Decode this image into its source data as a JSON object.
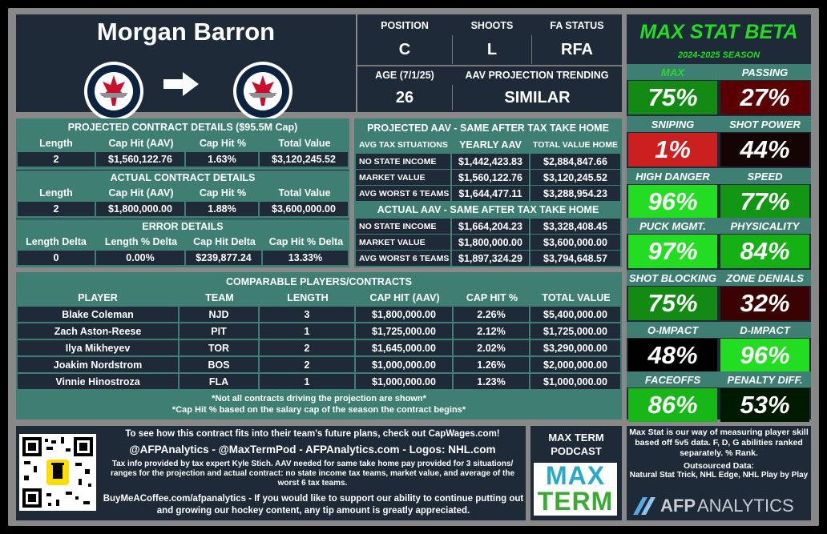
{
  "player": {
    "name": "Morgan Barron",
    "position_label": "POSITION",
    "position": "C",
    "shoots_label": "SHOOTS",
    "shoots": "L",
    "fa_label": "FA STATUS",
    "fa_status": "RFA",
    "age_label": "AGE (7/1/25)",
    "age": "26",
    "trend_label": "AAV PROJECTION TRENDING",
    "trend": "SIMILAR",
    "from_team_logo": "jets-logo-icon",
    "to_team_logo": "jets-logo-icon",
    "arrow": "arrow-right-icon"
  },
  "projected": {
    "title": "PROJECTED CONTRACT DETAILS ($95.5M Cap)",
    "headers": [
      "Length",
      "Cap Hit (AAV)",
      "Cap Hit %",
      "Total Value"
    ],
    "values": [
      "2",
      "$1,560,122.76",
      "1.63%",
      "$3,120,245.52"
    ]
  },
  "actual": {
    "title": "ACTUAL CONTRACT DETAILS",
    "headers": [
      "Length",
      "Cap Hit (AAV)",
      "Cap Hit %",
      "Total Value"
    ],
    "values": [
      "2",
      "$1,800,000.00",
      "1.88%",
      "$3,600,000.00"
    ]
  },
  "error": {
    "title": "ERROR DETAILS",
    "headers": [
      "Length Delta",
      "Length % Delta",
      "Cap Hit Delta",
      "Cap Hit % Delta"
    ],
    "values": [
      "0",
      "0.00%",
      "$239,877.24",
      "13.33%"
    ]
  },
  "tax_projected": {
    "title": "PROJECTED AAV - SAME AFTER TAX TAKE HOME",
    "headers": [
      "AVG TAX SITUATIONS",
      "YEARLY AAV",
      "TOTAL VALUE HOME"
    ],
    "rows": [
      [
        "NO STATE INCOME",
        "$1,442,423.83",
        "$2,884,847.66"
      ],
      [
        "MARKET VALUE",
        "$1,560,122.76",
        "$3,120,245.52"
      ],
      [
        "AVG WORST 6 TEAMS",
        "$1,644,477.11",
        "$3,288,954.23"
      ]
    ]
  },
  "tax_actual": {
    "title": "ACTUAL AAV - SAME AFTER TAX TAKE HOME",
    "rows": [
      [
        "NO STATE INCOME",
        "$1,664,204.23",
        "$3,328,408.45"
      ],
      [
        "MARKET VALUE",
        "$1,800,000.00",
        "$3,600,000.00"
      ],
      [
        "AVG WORST 6 TEAMS",
        "$1,897,324.29",
        "$3,794,648.57"
      ]
    ]
  },
  "comparables": {
    "title": "COMPARABLE PLAYERS/CONTRACTS",
    "headers": [
      "PLAYER",
      "TEAM",
      "LENGTH",
      "CAP HIT (AAV)",
      "CAP HIT %",
      "TOTAL VALUE"
    ],
    "rows": [
      [
        "Blake Coleman",
        "NJD",
        "3",
        "$1,800,000.00",
        "2.26%",
        "$5,400,000.00"
      ],
      [
        "Zach Aston-Reese",
        "PIT",
        "1",
        "$1,725,000.00",
        "2.12%",
        "$1,725,000.00"
      ],
      [
        "Ilya Mikheyev",
        "TOR",
        "2",
        "$1,645,000.00",
        "2.02%",
        "$3,290,000.00"
      ],
      [
        "Joakim Nordstrom",
        "BOS",
        "2",
        "$1,000,000.00",
        "1.26%",
        "$2,000,000.00"
      ],
      [
        "Vinnie Hinostroza",
        "FLA",
        "1",
        "$1,000,000.00",
        "1.23%",
        "$1,000,000.00"
      ]
    ],
    "note1": "*Not all contracts driving the projection are shown*",
    "note2": "*Cap Hit % based on the salary cap of the season the contract begins*"
  },
  "footer": {
    "capwages": "To see how this contract fits into their team's future plans, check out CapWages.com!",
    "socials": "@AFPAnalytics - @MaxTermPod - AFPAnalytics.com - Logos: NHL.com",
    "taxinfo": "Tax info provided by tax expert Kyle Stich. AAV needed for same take home pay provided for 3 situations/ ranges for the projection and actual contract: no state income tax teams, market value, and average of the worst 6 tax teams.",
    "coffee": "BuyMeACoffee.com/afpanalytics - If you would like to support our ability to continue putting out and growing our hockey content, any tip amount is greatly appreciated.",
    "podcast_title": "MAX TERM PODCAST",
    "podcast_logo_top": "MAX",
    "podcast_logo_bottom": "TERM",
    "maxstat_desc": "Max Stat is our way of measuring player skill based off 5v5 data. F, D, G abilities ranked separately. % Rank.",
    "outsourced_title": "Outsourced Data:",
    "outsourced": "Natural Stat Trick, NHL Edge, NHL Play by Play",
    "afp_logo_a": "AFP",
    "afp_logo_b": "ANALYTICS"
  },
  "maxstat": {
    "title": "MAX STAT BETA",
    "season": "2024-2025 SEASON",
    "title_color": "#22dd22",
    "stats": [
      {
        "label": "MAX",
        "value": "75%",
        "color": "#138a13",
        "label_color": "#22dd22"
      },
      {
        "label": "PASSING",
        "value": "27%",
        "color": "#5a0000"
      },
      {
        "label": "SNIPING",
        "value": "1%",
        "color": "#cc1f1f"
      },
      {
        "label": "SHOT POWER",
        "value": "44%",
        "color": "#150404"
      },
      {
        "label": "HIGH DANGER",
        "value": "96%",
        "color": "#22dd22"
      },
      {
        "label": "SPEED",
        "value": "77%",
        "color": "#139613"
      },
      {
        "label": "PUCK MGMT.",
        "value": "97%",
        "color": "#22dd22"
      },
      {
        "label": "PHYSICALITY",
        "value": "84%",
        "color": "#14b014"
      },
      {
        "label": "SHOT BLOCKING",
        "value": "75%",
        "color": "#138a13"
      },
      {
        "label": "ZONE DENIALS",
        "value": "32%",
        "color": "#3a0202"
      },
      {
        "label": "O-IMPACT",
        "value": "48%",
        "color": "#000000"
      },
      {
        "label": "D-IMPACT",
        "value": "96%",
        "color": "#22dd22"
      },
      {
        "label": "FACEOFFS",
        "value": "86%",
        "color": "#16b716"
      },
      {
        "label": "PENALTY DIFF.",
        "value": "53%",
        "color": "#001a00"
      }
    ]
  }
}
